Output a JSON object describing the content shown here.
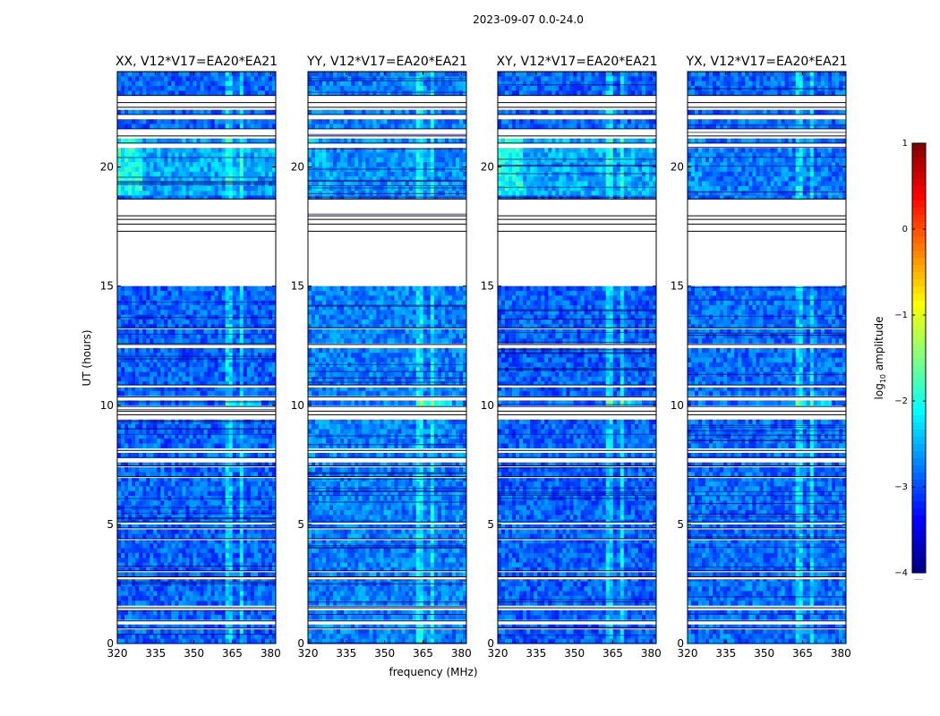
{
  "chart_data": {
    "type": "heatmap",
    "title": "2023-09-07 0.0-24.0",
    "xlabel": "frequency (MHz)",
    "ylabel": "UT (hours)",
    "xlim": [
      320,
      382
    ],
    "ylim": [
      0,
      24
    ],
    "xticks": [
      320,
      335,
      350,
      365,
      380
    ],
    "yticks": [
      0,
      5,
      10,
      15,
      20
    ],
    "colormap": "jet",
    "colorbar": {
      "label_main": "log",
      "label_sub": "10",
      "label_tail": " amplitude",
      "range": [
        -4,
        1
      ],
      "ticks": [
        "1",
        "0",
        "−1",
        "−2",
        "−3",
        "−4"
      ],
      "tick_values": [
        1,
        0,
        -1,
        -2,
        -3,
        -4
      ],
      "footnote": "....."
    },
    "panels": [
      {
        "name": "xx",
        "title": "XX, V12*V17=EA20*EA21",
        "base_level": -2.9,
        "evening_boost": 0.6
      },
      {
        "name": "yy",
        "title": "YY, V12*V17=EA20*EA21",
        "base_level": -2.75,
        "evening_boost": 0.15
      },
      {
        "name": "xy",
        "title": "XY, V12*V17=EA20*EA21",
        "base_level": -2.9,
        "evening_boost": 0.6
      },
      {
        "name": "yx",
        "title": "YX, V12*V17=EA20*EA21",
        "base_level": -2.85,
        "evening_boost": 0.1
      }
    ],
    "flagged_ranges_hours": [
      [
        15.1,
        17.3
      ],
      [
        17.5,
        17.6
      ],
      [
        17.7,
        17.8
      ],
      [
        17.85,
        17.95
      ],
      [
        18.1,
        18.65
      ],
      [
        22.4,
        22.5
      ],
      [
        22.6,
        22.7
      ],
      [
        22.9,
        23.0
      ],
      [
        22.1,
        22.2
      ],
      [
        21.5,
        21.6
      ],
      [
        21.2,
        21.3
      ],
      [
        20.9,
        21.0
      ],
      [
        12.5,
        12.55
      ],
      [
        13.2,
        13.25
      ],
      [
        10.75,
        10.85
      ],
      [
        10.3,
        10.35
      ],
      [
        9.9,
        9.95
      ],
      [
        9.5,
        9.6
      ],
      [
        9.7,
        9.75
      ],
      [
        8.0,
        8.1
      ],
      [
        7.65,
        7.8
      ],
      [
        7.4,
        7.45
      ],
      [
        6.95,
        7.0
      ],
      [
        5.0,
        5.1
      ],
      [
        4.8,
        4.85
      ],
      [
        4.35,
        4.4
      ],
      [
        3.0,
        3.05
      ],
      [
        2.7,
        2.8
      ],
      [
        1.45,
        1.5
      ],
      [
        0.85,
        0.95
      ],
      [
        0.6,
        0.65
      ]
    ],
    "rfi_channels_mhz": [
      {
        "from": 362.5,
        "to": 364.5,
        "boost": 0.55
      },
      {
        "from": 366.0,
        "to": 367.0,
        "boost": 0.45
      },
      {
        "from": 368.0,
        "to": 369.5,
        "boost": 0.55
      },
      {
        "from": 371.5,
        "to": 372.5,
        "boost": 0.45
      },
      {
        "from": 374.5,
        "to": 375.5,
        "boost": 0.4
      }
    ],
    "rfi_hot_hours": [
      9.6,
      10.4
    ]
  }
}
